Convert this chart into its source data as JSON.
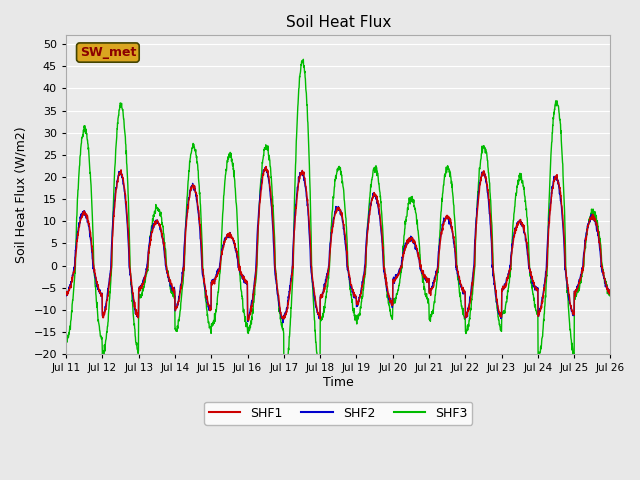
{
  "title": "Soil Heat Flux",
  "xlabel": "Time",
  "ylabel": "Soil Heat Flux (W/m2)",
  "ylim": [
    -20,
    52
  ],
  "yticks": [
    -20,
    -15,
    -10,
    -5,
    0,
    5,
    10,
    15,
    20,
    25,
    30,
    35,
    40,
    45,
    50
  ],
  "annotation": "SW_met",
  "annotation_color": "#8B0000",
  "annotation_bg": "#DAA520",
  "fig_bg": "#E8E8E8",
  "plot_bg": "#EBEBEB",
  "line_colors": {
    "SHF1": "#CC0000",
    "SHF2": "#0000CC",
    "SHF3": "#00BB00"
  },
  "line_width": 1.0,
  "n_days": 15,
  "grid_color": "#FFFFFF",
  "tick_labels": [
    "Jul 11",
    "Jul 12",
    "Jul 13",
    "Jul 14",
    "Jul 15",
    "Jul 16",
    "Jul 17",
    "Jul 18",
    "Jul 19",
    "Jul 20",
    "Jul 21",
    "Jul 22",
    "Jul 23",
    "Jul 24",
    "Jul 25",
    "Jul 26"
  ],
  "day_amps_shf12": [
    12,
    21,
    10,
    18,
    7,
    22,
    21,
    13,
    16,
    6,
    11,
    21,
    10,
    20,
    11
  ],
  "day_amps_shf3": [
    31,
    36,
    13,
    27,
    25,
    27,
    46,
    22,
    22,
    15,
    22,
    27,
    20,
    37,
    12
  ]
}
